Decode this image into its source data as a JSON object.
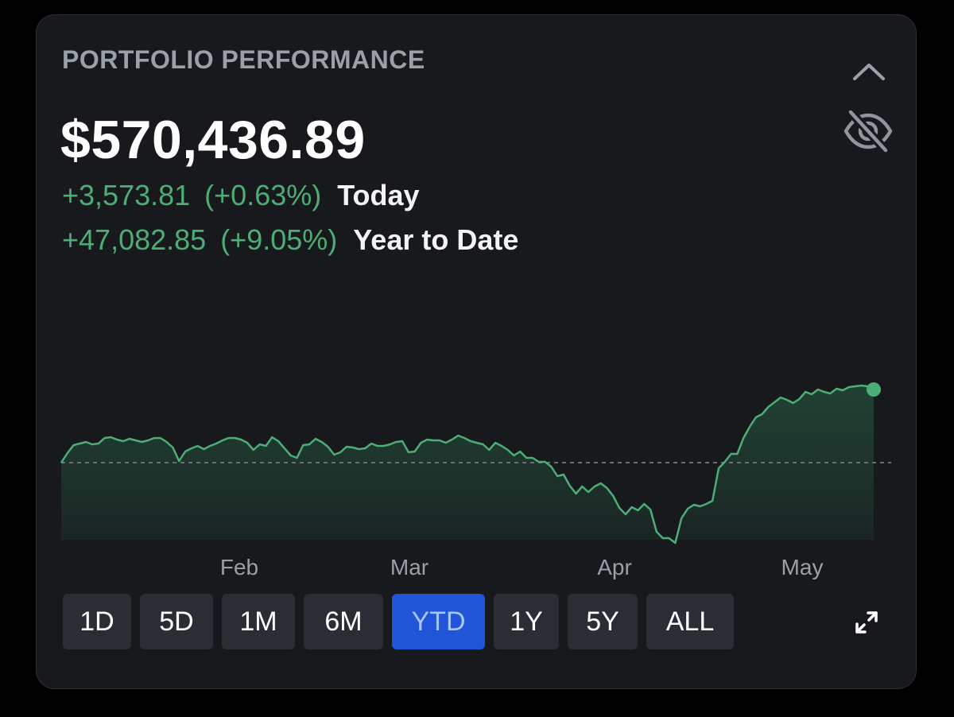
{
  "card": {
    "title": "PORTFOLIO PERFORMANCE",
    "collapse_icon": "chevron-up-icon",
    "hide_icon": "eye-off-icon",
    "expand_icon": "expand-icon"
  },
  "summary": {
    "total_value": "$570,436.89",
    "today": {
      "gain": "+3,573.81",
      "pct": "(+0.63%)",
      "label": "Today"
    },
    "ytd": {
      "gain": "+47,082.85",
      "pct": "(+9.05%)",
      "label": "Year to Date"
    }
  },
  "colors": {
    "gain": "#4cae74",
    "line": "#4cae74",
    "active_range": "#1f55d6",
    "card_bg": "#17191d"
  },
  "ranges": {
    "items": [
      {
        "label": "1D"
      },
      {
        "label": "5D"
      },
      {
        "label": "1M"
      },
      {
        "label": "6M"
      },
      {
        "label": "YTD",
        "active": true
      },
      {
        "label": "1Y"
      },
      {
        "label": "5Y"
      },
      {
        "label": "ALL"
      }
    ]
  },
  "chart_data": {
    "type": "area",
    "title": "",
    "xlabel": "",
    "ylabel": "",
    "x_tick_labels": [
      "Feb",
      "Mar",
      "Apr",
      "May"
    ],
    "baseline": "start value (dashed)",
    "grid": false,
    "series": [
      {
        "values": [
          0.0,
          1.2,
          2.2,
          2.4,
          2.6,
          2.3,
          2.4,
          3.1,
          3.2,
          2.9,
          2.7,
          3.0,
          2.8,
          2.6,
          2.8,
          3.1,
          3.1,
          2.6,
          1.9,
          0.2,
          1.4,
          1.8,
          2.1,
          1.7,
          2.1,
          2.4,
          2.8,
          3.1,
          3.1,
          2.9,
          2.5,
          1.6,
          2.3,
          2.1,
          3.2,
          2.7,
          1.8,
          0.9,
          0.6,
          2.2,
          2.3,
          3.0,
          2.6,
          2.0,
          1.0,
          1.3,
          2.0,
          1.9,
          1.7,
          1.8,
          2.4,
          2.1,
          2.1,
          2.3,
          2.6,
          2.7,
          1.3,
          1.4,
          2.5,
          2.9,
          2.8,
          2.8,
          2.5,
          2.9,
          3.4,
          3.1,
          2.7,
          2.5,
          2.3,
          1.6,
          2.5,
          2.1,
          1.6,
          0.9,
          1.4,
          0.6,
          0.6,
          0.1,
          0.1,
          -0.5,
          -1.7,
          -1.5,
          -2.9,
          -3.9,
          -3.0,
          -3.7,
          -3.0,
          -2.6,
          -3.2,
          -4.2,
          -5.7,
          -6.5,
          -5.6,
          -6.0,
          -5.2,
          -5.9,
          -8.7,
          -9.5,
          -9.5,
          -10.1,
          -7.0,
          -5.8,
          -5.3,
          -5.5,
          -5.2,
          -4.8,
          -0.7,
          0.1,
          1.1,
          1.1,
          3.1,
          4.5,
          5.7,
          6.1,
          7.0,
          7.6,
          8.2,
          7.9,
          7.5,
          8.0,
          8.9,
          8.6,
          9.2,
          8.9,
          8.7,
          9.3,
          9.1,
          9.5,
          9.6,
          9.7,
          9.6,
          9.2
        ]
      }
    ],
    "y_unit": "% change YTD (approx.)"
  }
}
